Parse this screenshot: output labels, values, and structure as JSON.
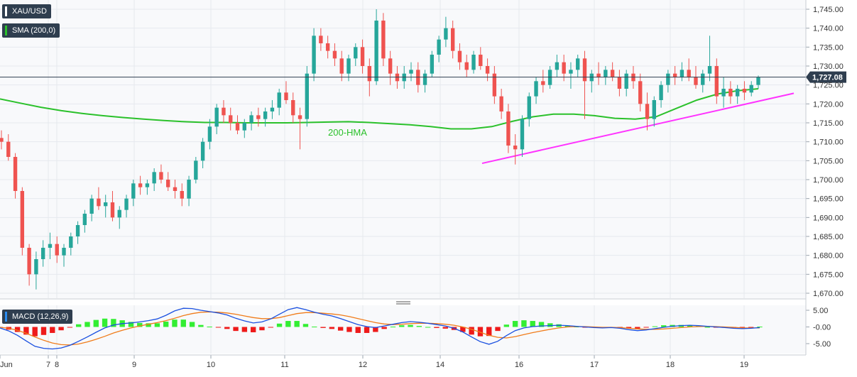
{
  "symbol_badge": "XAU/USD",
  "sma_badge": "SMA (200,0)",
  "macd_badge": "MACD (12,26,9)",
  "hma_label": "200-HMA",
  "colors": {
    "up": "#26a69a",
    "down": "#ef5350",
    "sma": "#2bc12b",
    "trendline": "#ff33ff",
    "macd_line": "#1a50e0",
    "signal_line": "#f07c1a",
    "hist_pos": "#33ee33",
    "hist_neg": "#ee1a1a",
    "price_line": "#2f3e4f"
  },
  "chart_data": {
    "type": "candlestick",
    "symbol": "XAU/USD",
    "last_price": "1,727.08",
    "y_ticks": [
      "1,745.00",
      "1,740.00",
      "1,735.00",
      "1,730.00",
      "1,725.00",
      "1,720.00",
      "1,715.00",
      "1,710.00",
      "1,705.00",
      "1,700.00",
      "1,695.00",
      "1,690.00",
      "1,685.00",
      "1,680.00",
      "1,675.00",
      "1,670.00"
    ],
    "ylim": [
      1668.0,
      1747.0
    ],
    "x_ticks": [
      "Jun",
      "7",
      "8",
      "9",
      "10",
      "11",
      "12",
      "14",
      "16",
      "17",
      "18",
      "19"
    ],
    "trendline": {
      "from": 1704.3,
      "to": 1722.8
    },
    "sma_200": [
      1721.3,
      1720.2,
      1719.1,
      1718.2,
      1717.5,
      1716.9,
      1716.4,
      1716.0,
      1715.6,
      1715.3,
      1715.1,
      1715.1,
      1715.0,
      1715.0,
      1715.0,
      1715.1,
      1715.2,
      1715.3,
      1715.1,
      1714.8,
      1714.5,
      1714.0,
      1713.4,
      1713.4,
      1714.0,
      1715.4,
      1716.6,
      1717.3,
      1717.3,
      1716.9,
      1716.2,
      1716.0,
      1716.6,
      1718.8,
      1721.0,
      1722.6,
      1723.5,
      1724.0
    ],
    "candles": [
      [
        1711.0,
        1713.0,
        1708.0,
        1710.0
      ],
      [
        1710.0,
        1712.0,
        1705.0,
        1706.0
      ],
      [
        1706.0,
        1707.0,
        1695.0,
        1697.0
      ],
      [
        1697.0,
        1698.0,
        1680.0,
        1682.0
      ],
      [
        1682.0,
        1683.0,
        1672.0,
        1675.0
      ],
      [
        1675.0,
        1681.0,
        1671.0,
        1679.0
      ],
      [
        1679.0,
        1684.0,
        1677.0,
        1682.0
      ],
      [
        1682.0,
        1686.0,
        1679.0,
        1683.0
      ],
      [
        1683.0,
        1685.0,
        1678.0,
        1680.0
      ],
      [
        1680.0,
        1683.0,
        1677.0,
        1682.0
      ],
      [
        1682.0,
        1686.0,
        1680.0,
        1685.0
      ],
      [
        1685.0,
        1689.0,
        1683.0,
        1688.0
      ],
      [
        1688.0,
        1692.0,
        1686.0,
        1691.0
      ],
      [
        1691.0,
        1696.0,
        1689.0,
        1695.0
      ],
      [
        1695.0,
        1698.0,
        1692.0,
        1693.0
      ],
      [
        1693.0,
        1696.0,
        1690.0,
        1694.0
      ],
      [
        1694.0,
        1697.0,
        1689.0,
        1690.0
      ],
      [
        1690.0,
        1693.0,
        1687.0,
        1692.0
      ],
      [
        1692.0,
        1696.0,
        1690.0,
        1695.0
      ],
      [
        1695.0,
        1700.0,
        1693.0,
        1699.0
      ],
      [
        1699.0,
        1701.0,
        1696.0,
        1698.0
      ],
      [
        1698.0,
        1700.0,
        1696.0,
        1699.0
      ],
      [
        1699.0,
        1703.0,
        1697.0,
        1702.0
      ],
      [
        1702.0,
        1704.0,
        1699.0,
        1700.0
      ],
      [
        1700.0,
        1702.0,
        1697.0,
        1698.0
      ],
      [
        1698.0,
        1700.0,
        1695.0,
        1697.0
      ],
      [
        1697.0,
        1699.0,
        1693.0,
        1695.0
      ],
      [
        1695.0,
        1701.0,
        1693.0,
        1700.0
      ],
      [
        1700.0,
        1706.0,
        1699.0,
        1705.0
      ],
      [
        1705.0,
        1711.0,
        1703.0,
        1710.0
      ],
      [
        1710.0,
        1716.0,
        1708.0,
        1714.0
      ],
      [
        1714.0,
        1720.0,
        1712.0,
        1719.0
      ],
      [
        1719.0,
        1721.0,
        1715.0,
        1717.0
      ],
      [
        1717.0,
        1719.0,
        1713.0,
        1715.0
      ],
      [
        1715.0,
        1717.0,
        1712.0,
        1713.0
      ],
      [
        1713.0,
        1716.0,
        1711.0,
        1715.0
      ],
      [
        1715.0,
        1718.0,
        1713.0,
        1717.0
      ],
      [
        1717.0,
        1719.0,
        1714.0,
        1716.0
      ],
      [
        1716.0,
        1719.0,
        1714.0,
        1718.0
      ],
      [
        1718.0,
        1721.0,
        1716.0,
        1719.0
      ],
      [
        1719.0,
        1724.0,
        1717.0,
        1723.0
      ],
      [
        1723.0,
        1726.0,
        1720.0,
        1721.0
      ],
      [
        1721.0,
        1723.0,
        1715.0,
        1717.0
      ],
      [
        1717.0,
        1719.0,
        1708.0,
        1716.0
      ],
      [
        1716.0,
        1730.0,
        1714.0,
        1728.0
      ],
      [
        1728.0,
        1740.0,
        1726.0,
        1738.0
      ],
      [
        1738.0,
        1740.0,
        1734.0,
        1736.0
      ],
      [
        1736.0,
        1738.0,
        1732.0,
        1734.0
      ],
      [
        1734.0,
        1736.0,
        1730.0,
        1732.0
      ],
      [
        1732.0,
        1734.0,
        1726.0,
        1728.0
      ],
      [
        1728.0,
        1733.0,
        1726.0,
        1732.0
      ],
      [
        1732.0,
        1736.0,
        1730.0,
        1735.0
      ],
      [
        1735.0,
        1737.0,
        1728.0,
        1730.0
      ],
      [
        1730.0,
        1732.0,
        1722.0,
        1726.0
      ],
      [
        1726.0,
        1745.0,
        1725.0,
        1742.0
      ],
      [
        1742.0,
        1744.0,
        1730.0,
        1732.0
      ],
      [
        1732.0,
        1734.0,
        1725.0,
        1728.0
      ],
      [
        1728.0,
        1730.0,
        1724.0,
        1726.0
      ],
      [
        1726.0,
        1730.0,
        1724.0,
        1728.0
      ],
      [
        1728.0,
        1731.0,
        1726.0,
        1729.0
      ],
      [
        1729.0,
        1731.0,
        1723.0,
        1725.0
      ],
      [
        1725.0,
        1729.0,
        1723.0,
        1728.0
      ],
      [
        1728.0,
        1734.0,
        1727.0,
        1733.0
      ],
      [
        1733.0,
        1738.0,
        1731.0,
        1737.0
      ],
      [
        1737.0,
        1743.0,
        1735.0,
        1740.0
      ],
      [
        1740.0,
        1742.0,
        1732.0,
        1734.0
      ],
      [
        1734.0,
        1736.0,
        1729.0,
        1731.0
      ],
      [
        1731.0,
        1733.0,
        1727.0,
        1729.0
      ],
      [
        1729.0,
        1734.0,
        1728.0,
        1733.0
      ],
      [
        1733.0,
        1735.0,
        1729.0,
        1730.0
      ],
      [
        1730.0,
        1732.0,
        1726.0,
        1728.0
      ],
      [
        1728.0,
        1730.0,
        1720.0,
        1722.0
      ],
      [
        1722.0,
        1724.0,
        1716.0,
        1718.0
      ],
      [
        1718.0,
        1720.0,
        1707.0,
        1709.0
      ],
      [
        1709.0,
        1712.0,
        1704.0,
        1708.0
      ],
      [
        1708.0,
        1717.0,
        1706.0,
        1716.0
      ],
      [
        1716.0,
        1723.0,
        1714.0,
        1722.0
      ],
      [
        1722.0,
        1727.0,
        1720.0,
        1726.0
      ],
      [
        1726.0,
        1729.0,
        1723.0,
        1725.0
      ],
      [
        1725.0,
        1730.0,
        1724.0,
        1729.0
      ],
      [
        1729.0,
        1733.0,
        1727.0,
        1731.0
      ],
      [
        1731.0,
        1733.0,
        1726.0,
        1728.0
      ],
      [
        1728.0,
        1731.0,
        1724.0,
        1729.0
      ],
      [
        1729.0,
        1733.0,
        1727.0,
        1732.0
      ],
      [
        1732.0,
        1734.0,
        1716.0,
        1726.0
      ],
      [
        1726.0,
        1729.0,
        1723.0,
        1728.0
      ],
      [
        1728.0,
        1731.0,
        1725.0,
        1727.0
      ],
      [
        1727.0,
        1730.0,
        1725.0,
        1729.0
      ],
      [
        1729.0,
        1731.0,
        1726.0,
        1727.0
      ],
      [
        1727.0,
        1729.0,
        1722.0,
        1724.0
      ],
      [
        1724.0,
        1729.0,
        1722.0,
        1728.0
      ],
      [
        1728.0,
        1730.0,
        1724.0,
        1726.0
      ],
      [
        1726.0,
        1728.0,
        1718.0,
        1720.0
      ],
      [
        1720.0,
        1723.0,
        1713.0,
        1716.0
      ],
      [
        1716.0,
        1722.0,
        1714.0,
        1721.0
      ],
      [
        1721.0,
        1726.0,
        1719.0,
        1725.0
      ],
      [
        1725.0,
        1729.0,
        1723.0,
        1728.0
      ],
      [
        1728.0,
        1730.0,
        1725.0,
        1727.0
      ],
      [
        1727.0,
        1731.0,
        1726.0,
        1729.0
      ],
      [
        1729.0,
        1732.0,
        1726.0,
        1727.0
      ],
      [
        1727.0,
        1730.0,
        1724.0,
        1725.0
      ],
      [
        1725.0,
        1729.0,
        1723.0,
        1728.0
      ],
      [
        1728.0,
        1738.0,
        1726.0,
        1730.0
      ],
      [
        1730.0,
        1732.0,
        1720.0,
        1722.0
      ],
      [
        1722.0,
        1727.0,
        1719.0,
        1724.0
      ],
      [
        1724.0,
        1726.0,
        1720.0,
        1722.0
      ],
      [
        1722.0,
        1725.0,
        1720.0,
        1724.0
      ],
      [
        1724.0,
        1726.0,
        1721.0,
        1723.0
      ],
      [
        1723.0,
        1726.0,
        1722.0,
        1725.0
      ],
      [
        1725.0,
        1727.5,
        1724.0,
        1727.0
      ]
    ],
    "macd": {
      "y_ticks": [
        "5.00",
        "-0.00",
        "-5.00"
      ],
      "ylim": [
        -7.2,
        6.2
      ],
      "macd_line": [
        -0.3,
        -1.2,
        -2.5,
        -4.2,
        -5.8,
        -6.4,
        -6.6,
        -6.3,
        -5.5,
        -4.3,
        -3.0,
        -1.6,
        -0.3,
        0.6,
        1.0,
        1.2,
        1.5,
        1.9,
        2.4,
        3.5,
        4.8,
        5.6,
        5.5,
        5.0,
        4.6,
        4.2,
        3.6,
        2.6,
        1.8,
        1.2,
        1.5,
        2.4,
        3.8,
        5.2,
        5.8,
        5.2,
        4.4,
        3.8,
        3.3,
        2.5,
        1.6,
        0.7,
        0.1,
        -0.2,
        0.3,
        0.8,
        1.3,
        1.6,
        1.4,
        1.1,
        0.7,
        0.3,
        -0.4,
        -1.5,
        -3.0,
        -4.4,
        -5.2,
        -4.3,
        -2.6,
        -1.1,
        -0.3,
        0.1,
        0.3,
        0.4,
        0.5,
        0.4,
        0.2,
        0.0,
        -0.2,
        -0.3,
        -0.2,
        -0.4,
        -0.8,
        -1.1,
        -0.9,
        -0.5,
        -0.1,
        0.2,
        0.4,
        0.5,
        0.4,
        0.2,
        0.0,
        -0.2,
        -0.4,
        -0.5,
        -0.4,
        -0.2
      ],
      "signal_line": [
        -0.1,
        -0.4,
        -1.0,
        -1.9,
        -3.0,
        -4.0,
        -4.8,
        -5.3,
        -5.4,
        -5.1,
        -4.5,
        -3.7,
        -2.8,
        -1.8,
        -1.0,
        -0.3,
        0.3,
        0.8,
        1.3,
        1.9,
        2.6,
        3.4,
        4.0,
        4.4,
        4.5,
        4.4,
        4.2,
        3.8,
        3.3,
        2.8,
        2.5,
        2.5,
        2.8,
        3.4,
        4.0,
        4.3,
        4.3,
        4.1,
        3.9,
        3.6,
        3.1,
        2.5,
        1.9,
        1.3,
        0.9,
        0.7,
        0.8,
        1.0,
        1.1,
        1.1,
        1.0,
        0.8,
        0.5,
        0.0,
        -0.7,
        -1.6,
        -2.5,
        -3.1,
        -3.3,
        -2.9,
        -2.3,
        -1.7,
        -1.2,
        -0.7,
        -0.3,
        0.0,
        0.1,
        0.1,
        0.0,
        -0.1,
        -0.1,
        -0.2,
        -0.4,
        -0.6,
        -0.7,
        -0.7,
        -0.6,
        -0.4,
        -0.2,
        0.0,
        0.1,
        0.2,
        0.1,
        0.0,
        -0.1,
        -0.3,
        -0.3,
        -0.3
      ]
    }
  }
}
